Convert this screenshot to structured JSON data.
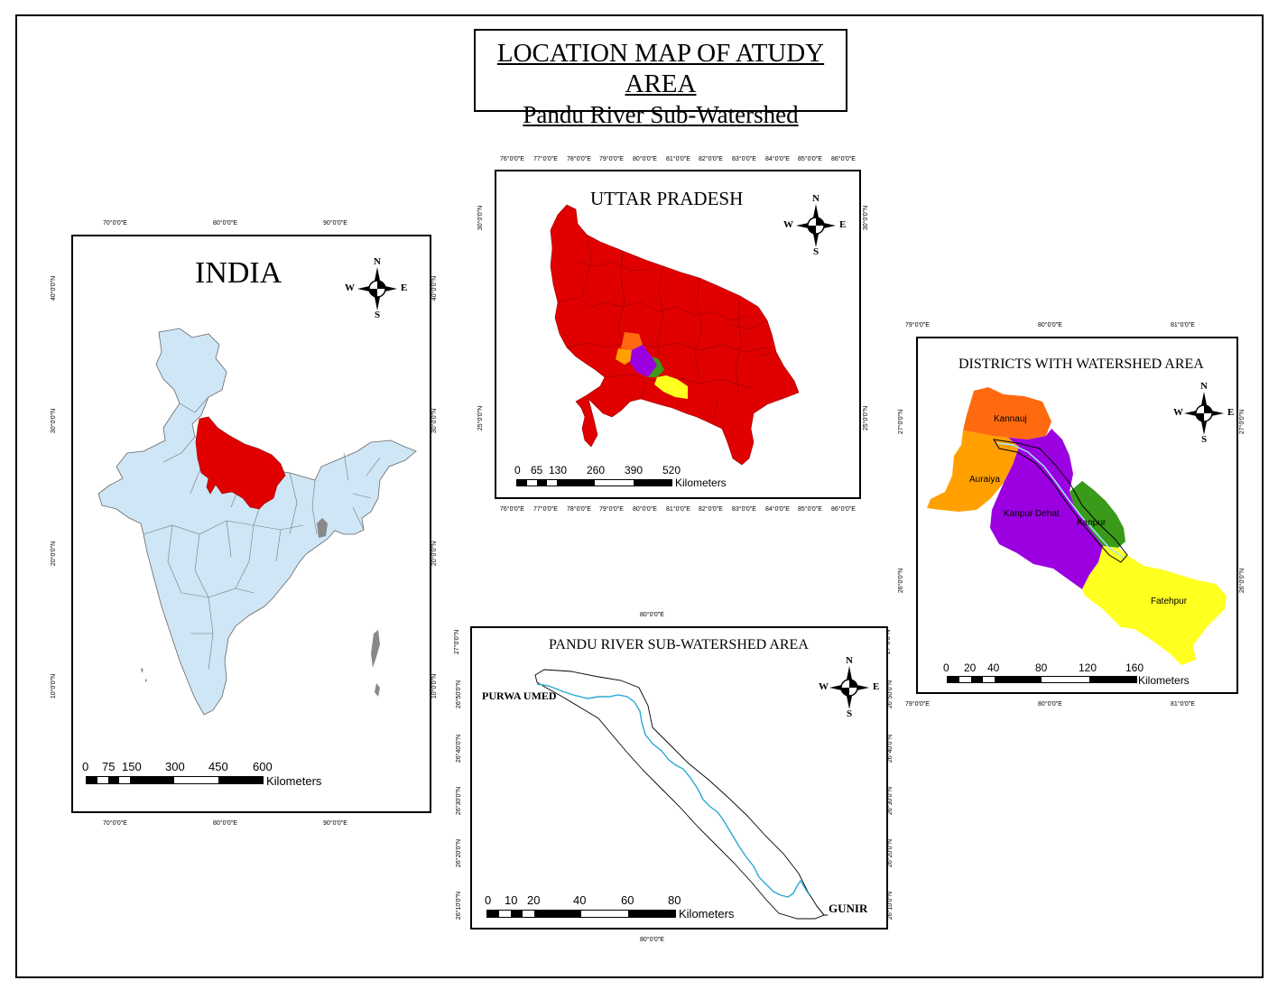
{
  "title": {
    "line1": "LOCATION MAP OF ATUDY AREA",
    "line2": "Pandu River Sub-Watershed"
  },
  "colors": {
    "india_fill": "#cfe6f7",
    "up_fill": "#e00000",
    "kannauj": "#ff6a10",
    "auraiya": "#ffa000",
    "kanpur_dehat": "#9b00e0",
    "kanpur": "#3a9a1a",
    "fatehpur": "#ffff20",
    "river": "#2aa8d6"
  },
  "india": {
    "title": "INDIA",
    "top_lon": [
      "70°0'0\"E",
      "80°0'0\"E",
      "90°0'0\"E"
    ],
    "bottom_lon": [
      "70°0'0\"E",
      "80°0'0\"E",
      "90°0'0\"E"
    ],
    "lat": [
      "40°0'0\"N",
      "30°0'0\"N",
      "20°0'0\"N",
      "10°0'0\"N"
    ],
    "scale_ticks": [
      "0",
      "75",
      "150",
      "300",
      "450",
      "600"
    ],
    "scale_unit": "Kilometers"
  },
  "up": {
    "title": "UTTAR PRADESH",
    "lon": [
      "76°0'0\"E",
      "77°0'0\"E",
      "78°0'0\"E",
      "79°0'0\"E",
      "80°0'0\"E",
      "81°0'0\"E",
      "82°0'0\"E",
      "83°0'0\"E",
      "84°0'0\"E",
      "85°0'0\"E",
      "86°0'0\"E"
    ],
    "lat": [
      "30°0'0\"N",
      "25°0'0\"N"
    ],
    "scale_ticks": [
      "0",
      "65",
      "130",
      "260",
      "390",
      "520"
    ],
    "scale_unit": "Kilometers"
  },
  "districts": {
    "title": "DISTRICTS WITH WATERSHED AREA",
    "lon": [
      "79°0'0\"E",
      "80°0'0\"E",
      "81°0'0\"E"
    ],
    "lat": [
      "27°0'0\"N",
      "26°0'0\"N"
    ],
    "labels": {
      "kannauj": "Kannauj",
      "auraiya": "Auraiya",
      "kanpur_dehat": "Kanpur Dehat",
      "kanpur": "Kanpur",
      "fatehpur": "Fatehpur"
    },
    "scale_ticks": [
      "0",
      "20",
      "40",
      "80",
      "120",
      "160"
    ],
    "scale_unit": "Kilometers"
  },
  "watershed": {
    "title": "PANDU RIVER SUB-WATERSHED AREA",
    "lon": "80°0'0\"E",
    "lat": [
      "27°0'0\"N",
      "26°50'0\"N",
      "26°40'0\"N",
      "26°30'0\"N",
      "26°20'0\"N",
      "26°10'0\"N"
    ],
    "start_label": "PURWA UMED",
    "end_label": "GUNIR",
    "scale_ticks": [
      "0",
      "10",
      "20",
      "40",
      "60",
      "80"
    ],
    "scale_unit": "Kilometers"
  },
  "compass": {
    "n": "N",
    "s": "S",
    "e": "E",
    "w": "W"
  }
}
